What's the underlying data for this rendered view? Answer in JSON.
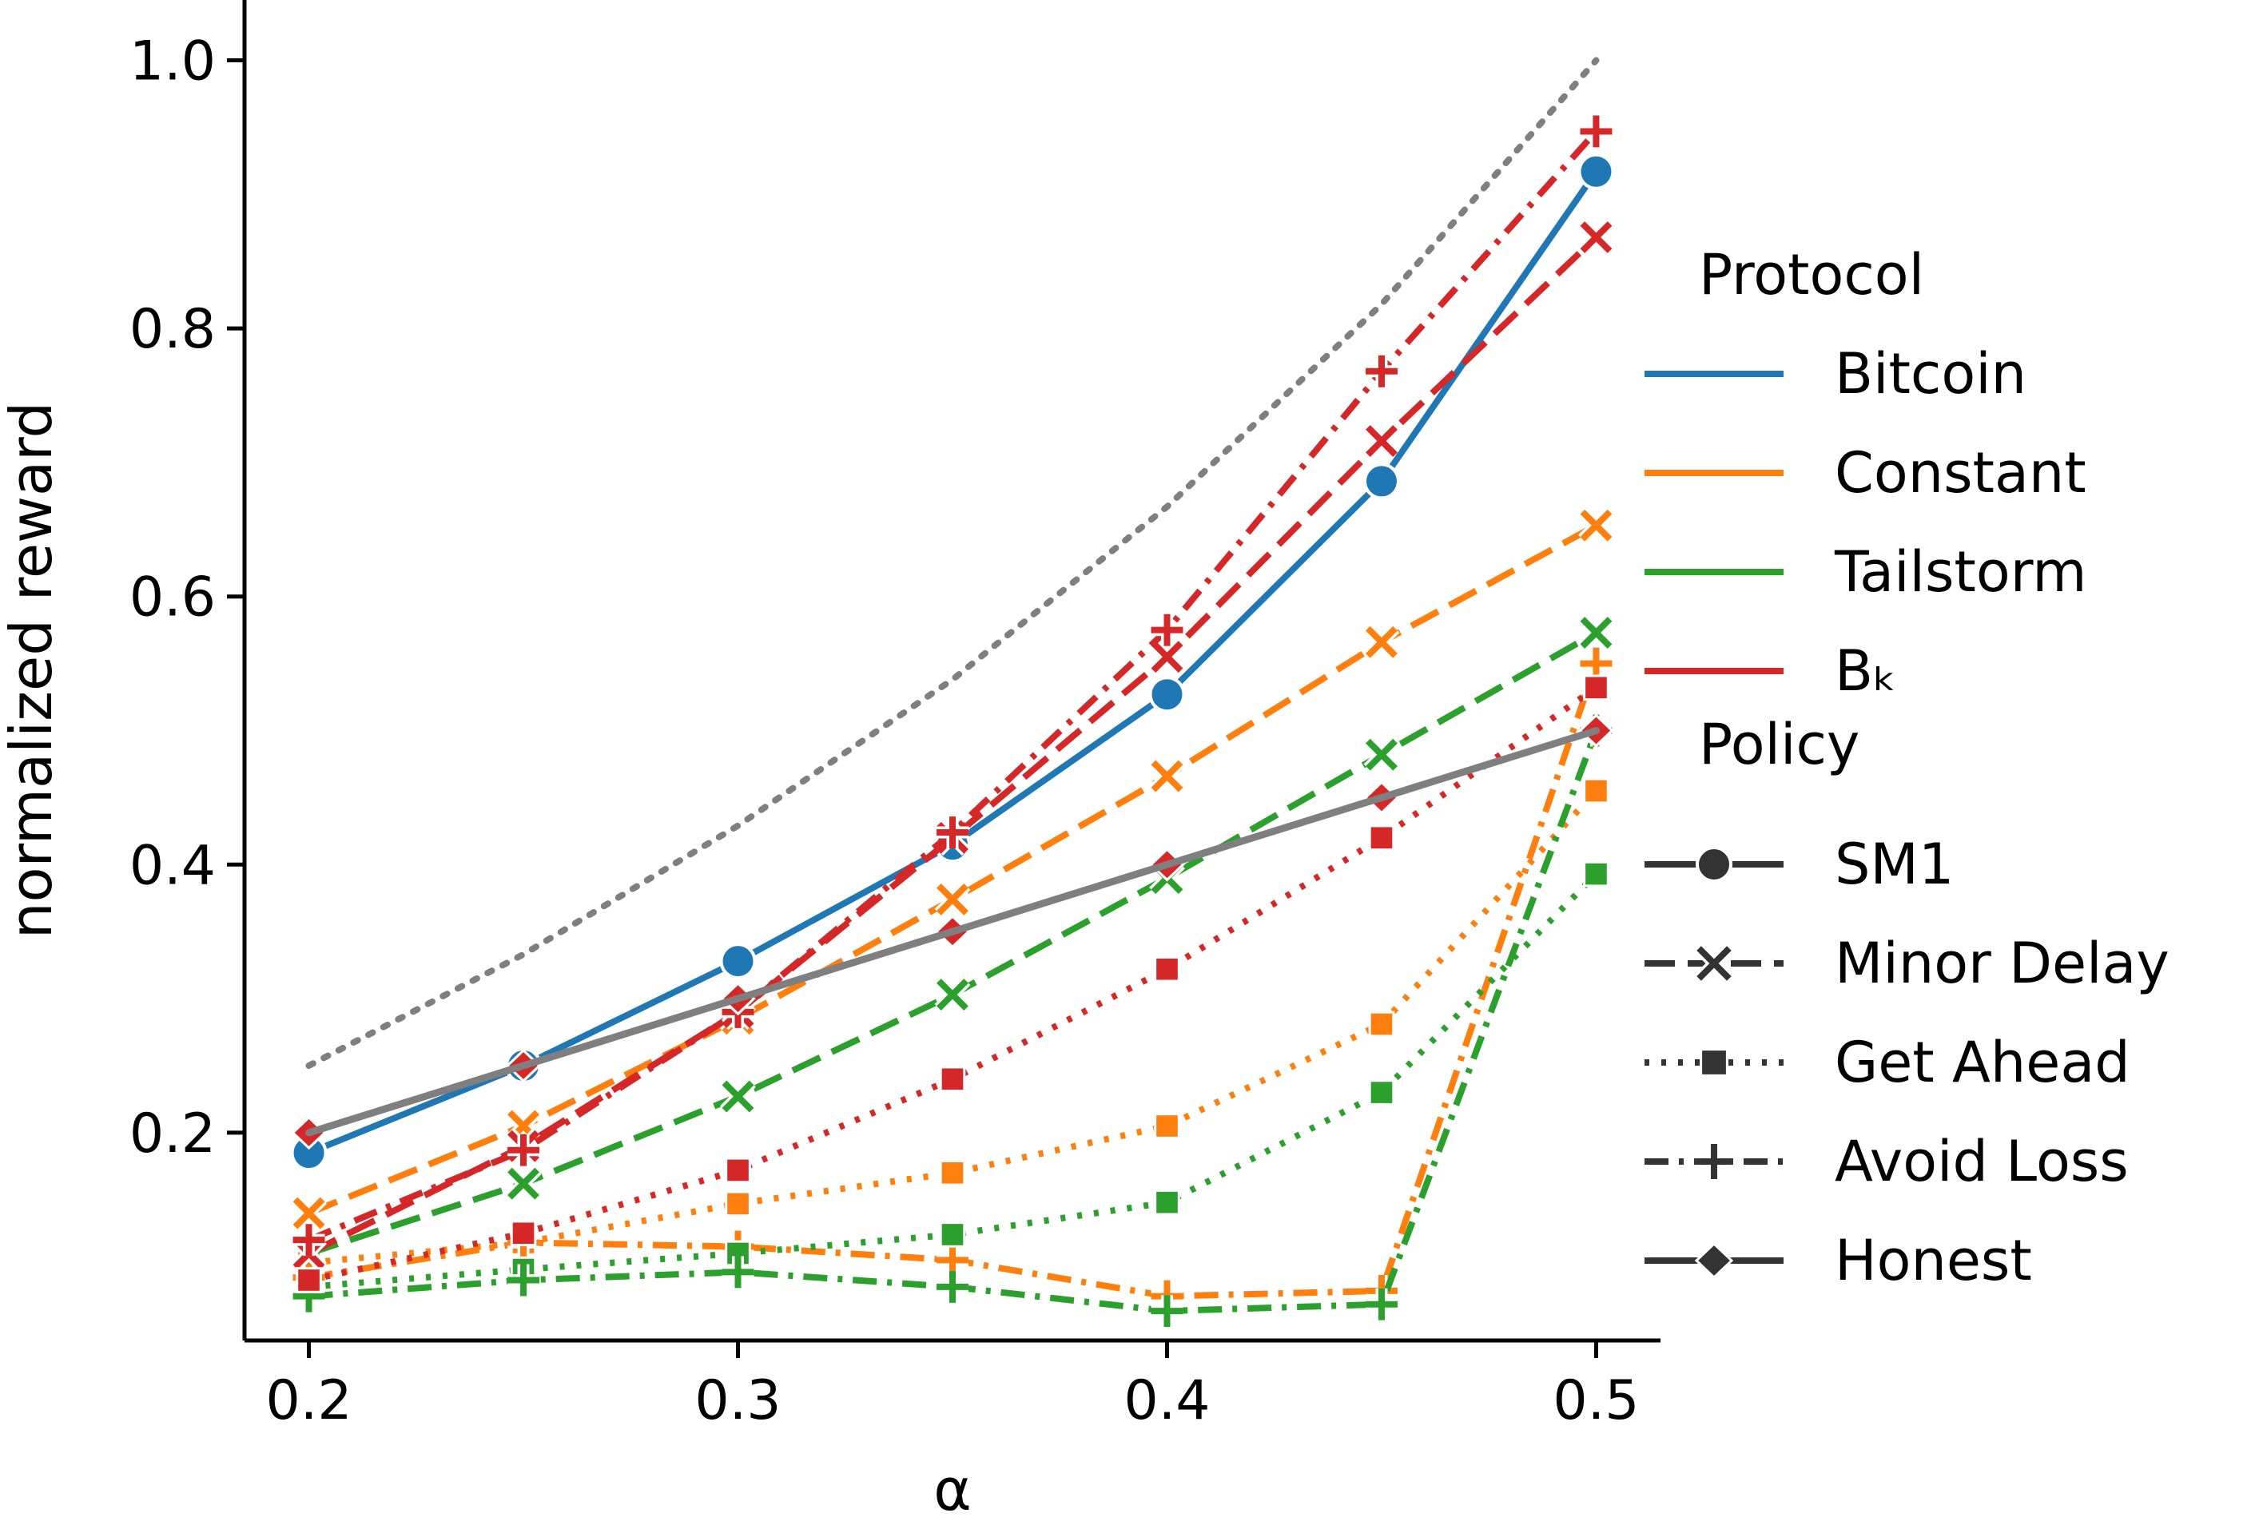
{
  "chart_data": {
    "type": "line",
    "title": "",
    "xlabel": "α",
    "ylabel": "normalized reward",
    "xlim": [
      0.185,
      0.515
    ],
    "ylim": [
      0.045,
      1.045
    ],
    "xticks": [
      {
        "value": 0.2,
        "label": "0.2"
      },
      {
        "value": 0.3,
        "label": "0.3"
      },
      {
        "value": 0.4,
        "label": "0.4"
      },
      {
        "value": 0.5,
        "label": "0.5"
      }
    ],
    "yticks": [
      {
        "value": 0.2,
        "label": "0.2"
      },
      {
        "value": 0.4,
        "label": "0.4"
      },
      {
        "value": 0.6,
        "label": "0.6"
      },
      {
        "value": 0.8,
        "label": "0.8"
      },
      {
        "value": 1.0,
        "label": "1.0"
      }
    ],
    "grid": false,
    "legend_position": "right",
    "x": [
      0.2,
      0.25,
      0.3,
      0.35,
      0.4,
      0.45,
      0.5
    ],
    "reference": {
      "values": [
        0.25,
        0.333,
        0.429,
        0.538,
        0.667,
        0.818,
        1.0
      ],
      "style": "dotted",
      "color": "#7f7f7f"
    },
    "honest_reference": {
      "values": [
        0.2,
        0.25,
        0.3,
        0.35,
        0.4,
        0.45,
        0.5
      ],
      "style": "solid",
      "color": "#7f7f7f"
    },
    "series": [
      {
        "protocol": "Bitcoin",
        "policy": "SM1",
        "values": [
          0.185,
          0.25,
          0.328,
          0.415,
          0.527,
          0.686,
          0.917
        ]
      },
      {
        "protocol": "Bitcoin",
        "policy": "Honest",
        "values": [
          0.2,
          0.25,
          0.3,
          0.35,
          0.4,
          0.45,
          0.5
        ]
      },
      {
        "protocol": "Constant",
        "policy": "Minor Delay",
        "values": [
          0.14,
          0.205,
          0.285,
          0.374,
          0.466,
          0.566,
          0.653
        ]
      },
      {
        "protocol": "Constant",
        "policy": "Get Ahead",
        "values": [
          0.103,
          0.118,
          0.147,
          0.17,
          0.205,
          0.281,
          0.455
        ]
      },
      {
        "protocol": "Constant",
        "policy": "Avoid Loss",
        "values": [
          0.092,
          0.118,
          0.115,
          0.105,
          0.078,
          0.082,
          0.55
        ]
      },
      {
        "protocol": "Constant",
        "policy": "Honest",
        "values": [
          0.2,
          0.25,
          0.3,
          0.35,
          0.4,
          0.45,
          0.5
        ]
      },
      {
        "protocol": "Tailstorm",
        "policy": "Minor Delay",
        "values": [
          0.11,
          0.162,
          0.227,
          0.303,
          0.39,
          0.482,
          0.573
        ]
      },
      {
        "protocol": "Tailstorm",
        "policy": "Get Ahead",
        "values": [
          0.085,
          0.098,
          0.11,
          0.124,
          0.148,
          0.23,
          0.393
        ]
      },
      {
        "protocol": "Tailstorm",
        "policy": "Avoid Loss",
        "values": [
          0.078,
          0.09,
          0.096,
          0.085,
          0.067,
          0.072,
          0.5
        ]
      },
      {
        "protocol": "Tailstorm",
        "policy": "Honest",
        "values": [
          0.2,
          0.25,
          0.3,
          0.35,
          0.4,
          0.45,
          0.5
        ]
      },
      {
        "protocol": "Bₖ",
        "policy": "Minor Delay",
        "values": [
          0.11,
          0.19,
          0.29,
          0.42,
          0.555,
          0.716,
          0.868
        ]
      },
      {
        "protocol": "Bₖ",
        "policy": "Get Ahead",
        "values": [
          0.09,
          0.125,
          0.172,
          0.24,
          0.322,
          0.42,
          0.532
        ]
      },
      {
        "protocol": "Bₖ",
        "policy": "Avoid Loss",
        "values": [
          0.12,
          0.187,
          0.29,
          0.424,
          0.575,
          0.768,
          0.947
        ]
      },
      {
        "protocol": "Bₖ",
        "policy": "Honest",
        "values": [
          0.2,
          0.25,
          0.3,
          0.35,
          0.4,
          0.45,
          0.5
        ]
      }
    ],
    "protocol_colors": {
      "Bitcoin": "#1f77b4",
      "Constant": "#ff7f0e",
      "Tailstorm": "#2ca02c",
      "Bₖ": "#d62728"
    },
    "policy_markers": {
      "SM1": "circle",
      "Minor Delay": "x",
      "Get Ahead": "square",
      "Avoid Loss": "plus",
      "Honest": "diamond"
    },
    "policy_dashes": {
      "SM1": "solid",
      "Minor Delay": "dashed",
      "Get Ahead": "dotted",
      "Avoid Loss": "dashdot",
      "Honest": "solid"
    }
  },
  "legend": {
    "protocol_title": "Protocol",
    "protocols": [
      "Bitcoin",
      "Constant",
      "Tailstorm",
      "Bₖ"
    ],
    "policy_title": "Policy",
    "policies": [
      "SM1",
      "Minor Delay",
      "Get Ahead",
      "Avoid Loss",
      "Honest"
    ]
  }
}
